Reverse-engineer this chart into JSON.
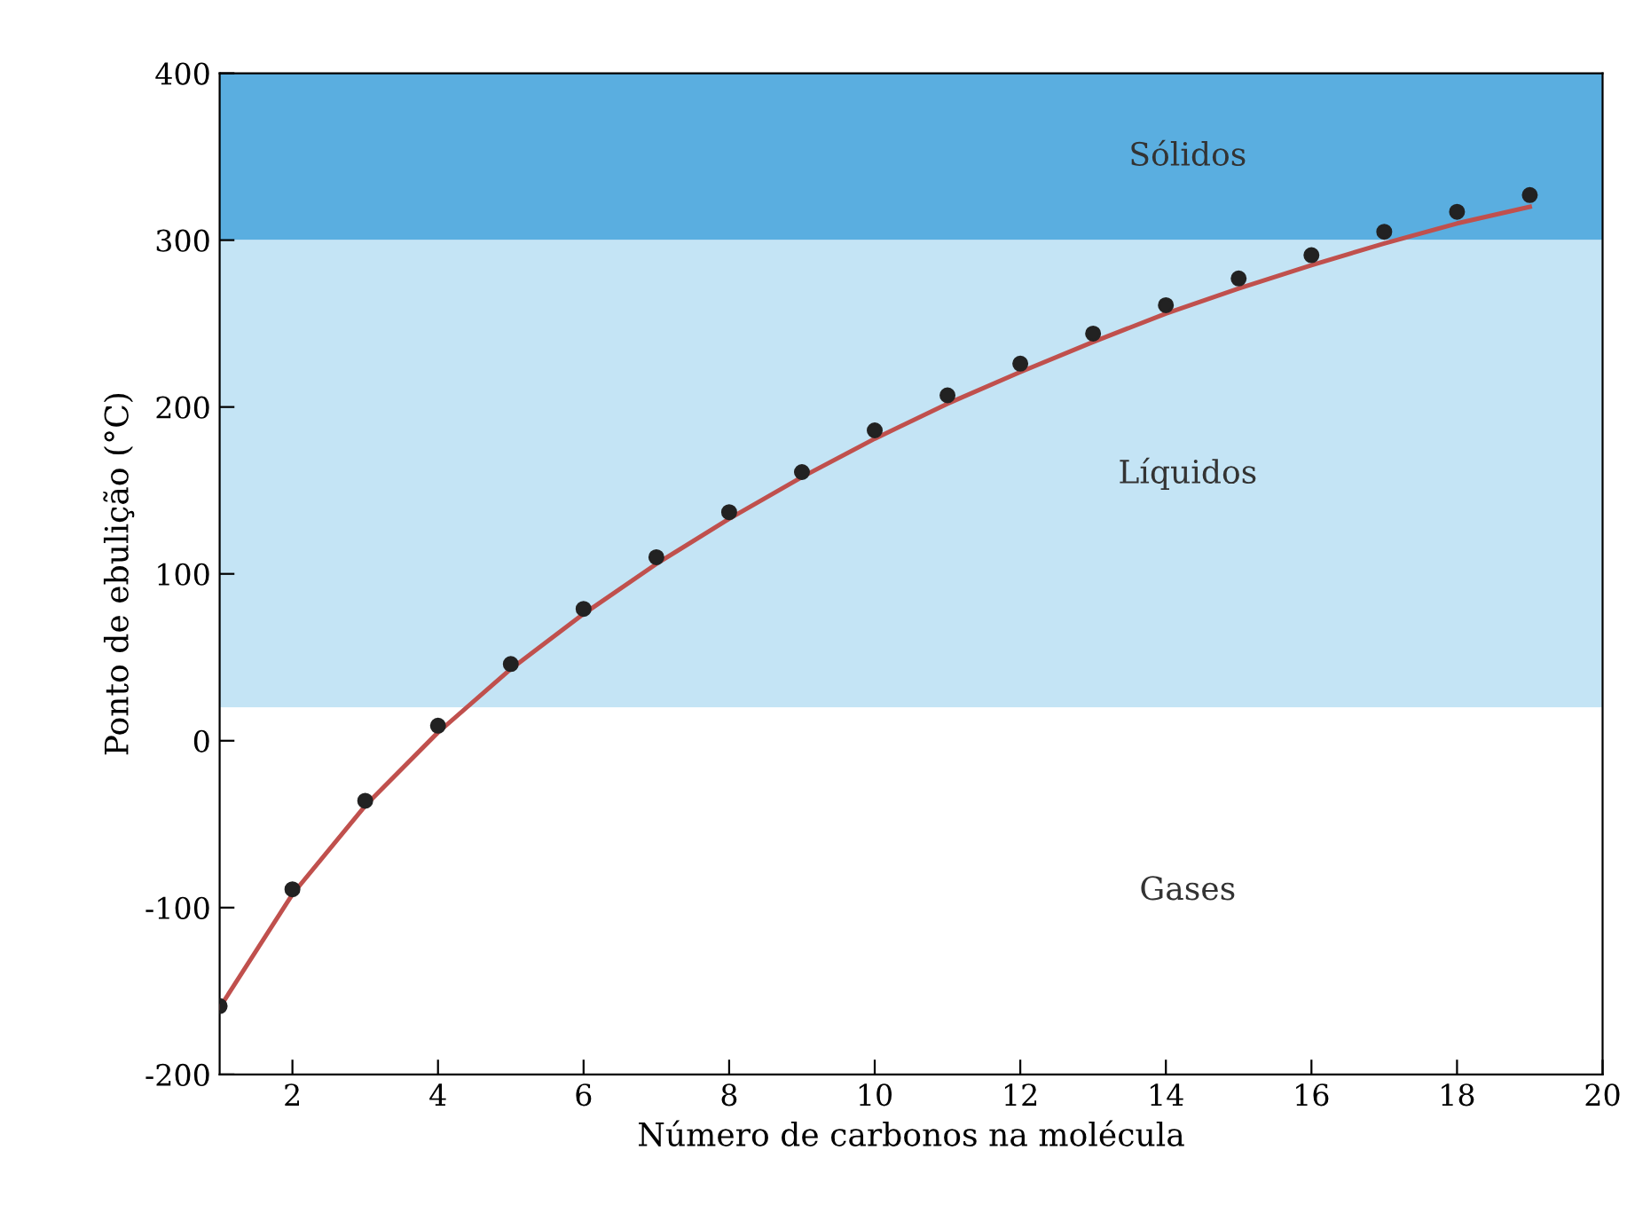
{
  "chart_data": {
    "type": "scatter",
    "xlabel": "Número de carbonos na molécula",
    "ylabel": "Ponto de ebulição (°C)",
    "x": [
      1,
      2,
      3,
      4,
      5,
      6,
      7,
      8,
      9,
      10,
      11,
      12,
      13,
      14,
      15,
      16,
      17,
      18,
      19
    ],
    "series": [
      {
        "color": "#222222",
        "marker": "circle",
        "values": [
          -159,
          -89,
          -36,
          9,
          46,
          79,
          110,
          137,
          161,
          186,
          207,
          226,
          244,
          261,
          277,
          291,
          305,
          317,
          327
        ]
      },
      {
        "type": "line",
        "color": "#c0504d",
        "marker": "none",
        "x": [
          1,
          2,
          3,
          4,
          5,
          6,
          7,
          8,
          9,
          10,
          11,
          12,
          13,
          14,
          15,
          16,
          17,
          18,
          19
        ],
        "values": [
          -160,
          -92,
          -39,
          5,
          43,
          76,
          106,
          133,
          158,
          181,
          202,
          221,
          239,
          256,
          271,
          285,
          298,
          310,
          320
        ]
      }
    ],
    "bands": [
      {
        "axis": "y",
        "from": 300,
        "to": 400,
        "label": "Sólidos",
        "color": "#5aaee0"
      },
      {
        "axis": "y",
        "from": 20,
        "to": 300,
        "label": "Líquidos",
        "color": "#c4e4f5"
      },
      {
        "axis": "y",
        "from": -200,
        "to": 20,
        "label": "Gases",
        "color": "#ffffff"
      }
    ],
    "xlim": [
      1,
      20
    ],
    "xticks": [
      2,
      4,
      6,
      8,
      10,
      12,
      14,
      16,
      18,
      20
    ],
    "ylim": [
      -200,
      400
    ],
    "yticks": [
      -200,
      -100,
      0,
      100,
      200,
      300,
      400
    ],
    "grid": false,
    "legend": false
  }
}
